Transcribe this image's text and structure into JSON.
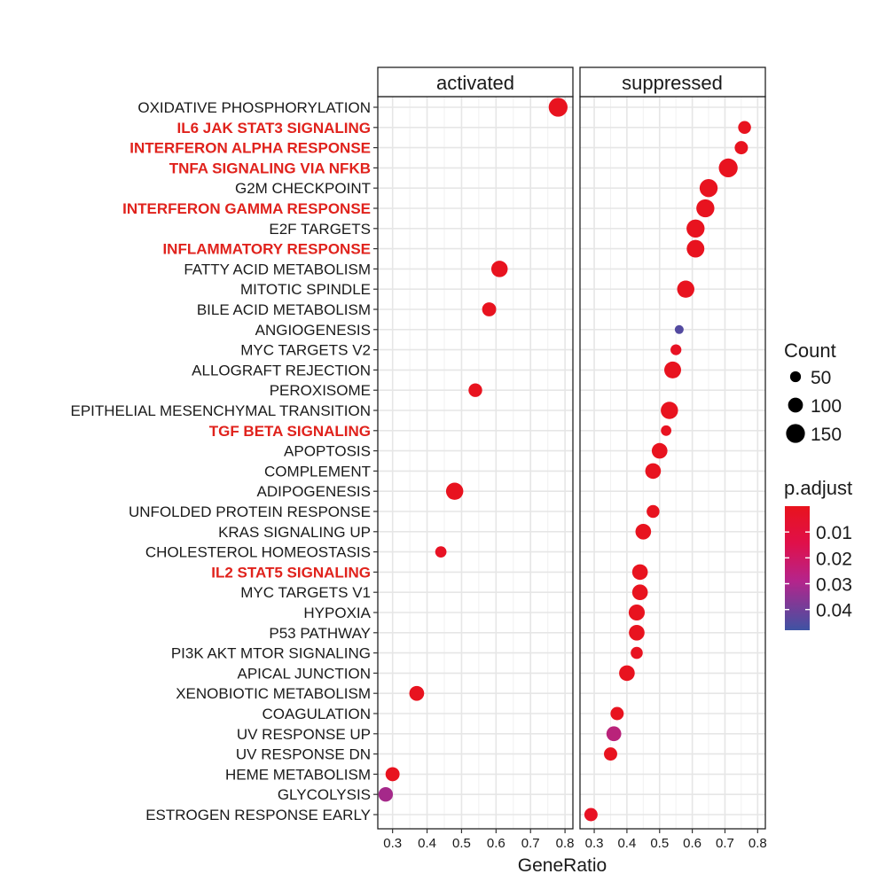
{
  "chart_data": {
    "type": "scatter",
    "xlabel": "GeneRatio",
    "xlim": [
      0.27,
      0.81
    ],
    "xticks": [
      "0.3",
      "0.4",
      "0.5",
      "0.6",
      "0.7",
      "0.8"
    ],
    "xtick_values": [
      0.3,
      0.4,
      0.5,
      0.6,
      0.7,
      0.8
    ],
    "grid": true,
    "panels": [
      {
        "key": "activated",
        "label": "activated"
      },
      {
        "key": "suppressed",
        "label": "suppressed"
      }
    ],
    "terms": [
      {
        "name": "OXIDATIVE PHOSPHORYLATION",
        "highlight": false
      },
      {
        "name": "IL6 JAK STAT3 SIGNALING",
        "highlight": true
      },
      {
        "name": "INTERFERON ALPHA RESPONSE",
        "highlight": true
      },
      {
        "name": "TNFA SIGNALING VIA NFKB",
        "highlight": true
      },
      {
        "name": "G2M CHECKPOINT",
        "highlight": false
      },
      {
        "name": "INTERFERON GAMMA RESPONSE",
        "highlight": true
      },
      {
        "name": "E2F TARGETS",
        "highlight": false
      },
      {
        "name": "INFLAMMATORY RESPONSE",
        "highlight": true
      },
      {
        "name": "FATTY ACID METABOLISM",
        "highlight": false
      },
      {
        "name": "MITOTIC SPINDLE",
        "highlight": false
      },
      {
        "name": "BILE ACID METABOLISM",
        "highlight": false
      },
      {
        "name": "ANGIOGENESIS",
        "highlight": false
      },
      {
        "name": "MYC TARGETS V2",
        "highlight": false
      },
      {
        "name": "ALLOGRAFT REJECTION",
        "highlight": false
      },
      {
        "name": "PEROXISOME",
        "highlight": false
      },
      {
        "name": "EPITHELIAL MESENCHYMAL TRANSITION",
        "highlight": false
      },
      {
        "name": "TGF BETA SIGNALING",
        "highlight": true
      },
      {
        "name": "APOPTOSIS",
        "highlight": false
      },
      {
        "name": "COMPLEMENT",
        "highlight": false
      },
      {
        "name": "ADIPOGENESIS",
        "highlight": false
      },
      {
        "name": "UNFOLDED PROTEIN RESPONSE",
        "highlight": false
      },
      {
        "name": "KRAS SIGNALING UP",
        "highlight": false
      },
      {
        "name": "CHOLESTEROL HOMEOSTASIS",
        "highlight": false
      },
      {
        "name": "IL2 STAT5 SIGNALING",
        "highlight": true
      },
      {
        "name": "MYC TARGETS V1",
        "highlight": false
      },
      {
        "name": "HYPOXIA",
        "highlight": false
      },
      {
        "name": "P53 PATHWAY",
        "highlight": false
      },
      {
        "name": "PI3K AKT MTOR SIGNALING",
        "highlight": false
      },
      {
        "name": "APICAL JUNCTION",
        "highlight": false
      },
      {
        "name": "XENOBIOTIC METABOLISM",
        "highlight": false
      },
      {
        "name": "COAGULATION",
        "highlight": false
      },
      {
        "name": "UV RESPONSE UP",
        "highlight": false
      },
      {
        "name": "UV RESPONSE DN",
        "highlight": false
      },
      {
        "name": "HEME METABOLISM",
        "highlight": false
      },
      {
        "name": "GLYCOLYSIS",
        "highlight": false
      },
      {
        "name": "ESTROGEN RESPONSE EARLY",
        "highlight": false
      }
    ],
    "points": [
      {
        "panel": "activated",
        "term": "OXIDATIVE PHOSPHORYLATION",
        "x": 0.78,
        "count": 150,
        "p_adjust": 0.001
      },
      {
        "panel": "activated",
        "term": "FATTY ACID METABOLISM",
        "x": 0.61,
        "count": 120,
        "p_adjust": 0.001
      },
      {
        "panel": "activated",
        "term": "BILE ACID METABOLISM",
        "x": 0.58,
        "count": 90,
        "p_adjust": 0.001
      },
      {
        "panel": "activated",
        "term": "PEROXISOME",
        "x": 0.54,
        "count": 85,
        "p_adjust": 0.001
      },
      {
        "panel": "activated",
        "term": "ADIPOGENESIS",
        "x": 0.48,
        "count": 130,
        "p_adjust": 0.001
      },
      {
        "panel": "activated",
        "term": "CHOLESTEROL HOMEOSTASIS",
        "x": 0.44,
        "count": 55,
        "p_adjust": 0.003
      },
      {
        "panel": "activated",
        "term": "XENOBIOTIC METABOLISM",
        "x": 0.37,
        "count": 100,
        "p_adjust": 0.001
      },
      {
        "panel": "activated",
        "term": "HEME METABOLISM",
        "x": 0.3,
        "count": 90,
        "p_adjust": 0.001
      },
      {
        "panel": "activated",
        "term": "GLYCOLYSIS",
        "x": 0.28,
        "count": 95,
        "p_adjust": 0.032
      },
      {
        "panel": "suppressed",
        "term": "IL6 JAK STAT3 SIGNALING",
        "x": 0.76,
        "count": 75,
        "p_adjust": 0.001
      },
      {
        "panel": "suppressed",
        "term": "INTERFERON ALPHA RESPONSE",
        "x": 0.75,
        "count": 80,
        "p_adjust": 0.001
      },
      {
        "panel": "suppressed",
        "term": "TNFA SIGNALING VIA NFKB",
        "x": 0.71,
        "count": 150,
        "p_adjust": 0.001
      },
      {
        "panel": "suppressed",
        "term": "G2M CHECKPOINT",
        "x": 0.65,
        "count": 140,
        "p_adjust": 0.001
      },
      {
        "panel": "suppressed",
        "term": "INTERFERON GAMMA RESPONSE",
        "x": 0.64,
        "count": 140,
        "p_adjust": 0.001
      },
      {
        "panel": "suppressed",
        "term": "E2F TARGETS",
        "x": 0.61,
        "count": 140,
        "p_adjust": 0.001
      },
      {
        "panel": "suppressed",
        "term": "INFLAMMATORY RESPONSE",
        "x": 0.61,
        "count": 135,
        "p_adjust": 0.001
      },
      {
        "panel": "suppressed",
        "term": "MITOTIC SPINDLE",
        "x": 0.58,
        "count": 130,
        "p_adjust": 0.001
      },
      {
        "panel": "suppressed",
        "term": "ANGIOGENESIS",
        "x": 0.56,
        "count": 25,
        "p_adjust": 0.045
      },
      {
        "panel": "suppressed",
        "term": "MYC TARGETS V2",
        "x": 0.55,
        "count": 50,
        "p_adjust": 0.003
      },
      {
        "panel": "suppressed",
        "term": "ALLOGRAFT REJECTION",
        "x": 0.54,
        "count": 125,
        "p_adjust": 0.001
      },
      {
        "panel": "suppressed",
        "term": "EPITHELIAL MESENCHYMAL TRANSITION",
        "x": 0.53,
        "count": 130,
        "p_adjust": 0.001
      },
      {
        "panel": "suppressed",
        "term": "TGF BETA SIGNALING",
        "x": 0.52,
        "count": 45,
        "p_adjust": 0.002
      },
      {
        "panel": "suppressed",
        "term": "APOPTOSIS",
        "x": 0.5,
        "count": 110,
        "p_adjust": 0.001
      },
      {
        "panel": "suppressed",
        "term": "COMPLEMENT",
        "x": 0.48,
        "count": 110,
        "p_adjust": 0.001
      },
      {
        "panel": "suppressed",
        "term": "UNFOLDED PROTEIN RESPONSE",
        "x": 0.48,
        "count": 75,
        "p_adjust": 0.001
      },
      {
        "panel": "suppressed",
        "term": "KRAS SIGNALING UP",
        "x": 0.45,
        "count": 110,
        "p_adjust": 0.001
      },
      {
        "panel": "suppressed",
        "term": "IL2 STAT5 SIGNALING",
        "x": 0.44,
        "count": 110,
        "p_adjust": 0.001
      },
      {
        "panel": "suppressed",
        "term": "MYC TARGETS V1",
        "x": 0.44,
        "count": 110,
        "p_adjust": 0.001
      },
      {
        "panel": "suppressed",
        "term": "HYPOXIA",
        "x": 0.43,
        "count": 115,
        "p_adjust": 0.001
      },
      {
        "panel": "suppressed",
        "term": "P53 PATHWAY",
        "x": 0.43,
        "count": 110,
        "p_adjust": 0.001
      },
      {
        "panel": "suppressed",
        "term": "PI3K AKT MTOR SIGNALING",
        "x": 0.43,
        "count": 65,
        "p_adjust": 0.002
      },
      {
        "panel": "suppressed",
        "term": "APICAL JUNCTION",
        "x": 0.4,
        "count": 110,
        "p_adjust": 0.001
      },
      {
        "panel": "suppressed",
        "term": "COAGULATION",
        "x": 0.37,
        "count": 80,
        "p_adjust": 0.001
      },
      {
        "panel": "suppressed",
        "term": "UV RESPONSE UP",
        "x": 0.36,
        "count": 100,
        "p_adjust": 0.028
      },
      {
        "panel": "suppressed",
        "term": "UV RESPONSE DN",
        "x": 0.35,
        "count": 80,
        "p_adjust": 0.001
      },
      {
        "panel": "suppressed",
        "term": "ESTROGEN RESPONSE EARLY",
        "x": 0.29,
        "count": 80,
        "p_adjust": 0.003
      }
    ],
    "legend": {
      "placement": "right",
      "size": {
        "title": "Count",
        "breaks": [
          50,
          100,
          150
        ],
        "labels": [
          "50",
          "100",
          "150"
        ]
      },
      "color": {
        "title": "p.adjust",
        "breaks": [
          0.01,
          0.02,
          0.03,
          0.04
        ],
        "labels": [
          "0.01",
          "0.02",
          "0.03",
          "0.04"
        ],
        "range": [
          0.0,
          0.048
        ],
        "low_color": "#e8131d",
        "high_color": "#3f53a3"
      }
    }
  }
}
